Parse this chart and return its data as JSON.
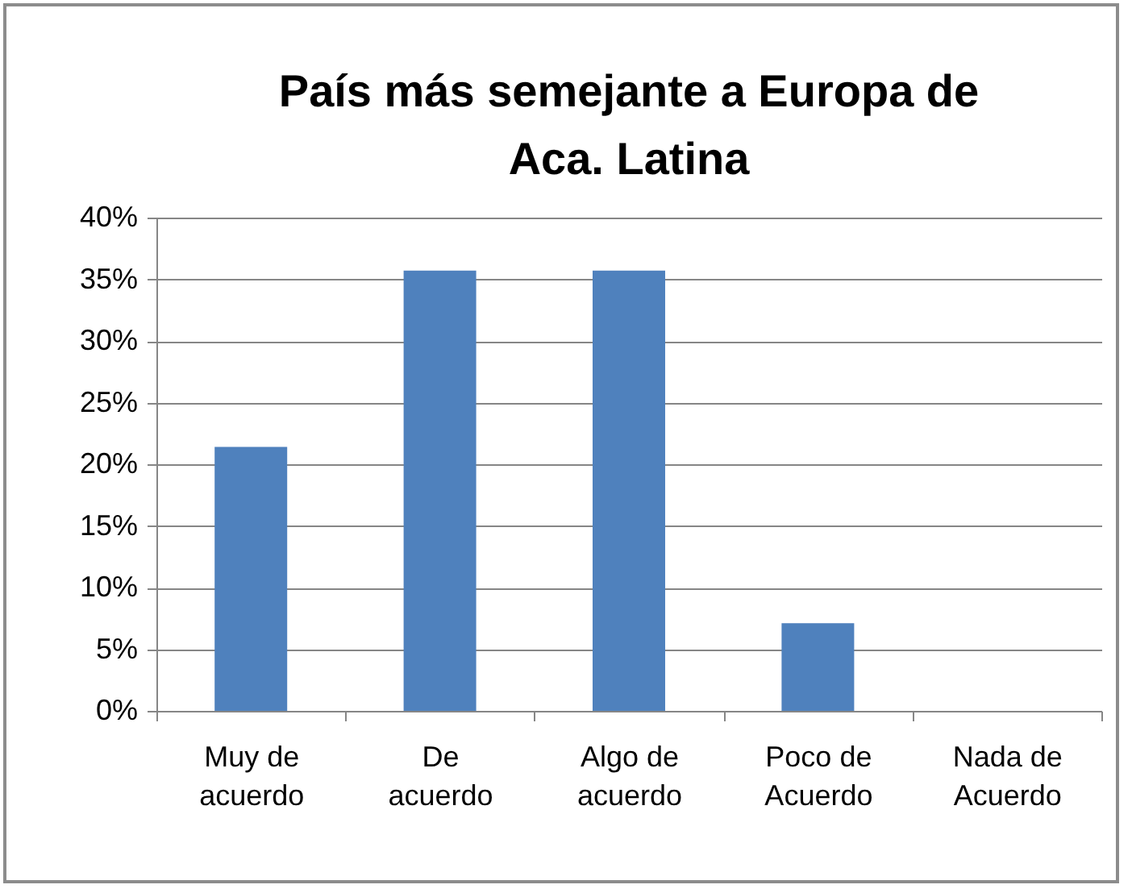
{
  "chart_data": {
    "type": "bar",
    "title": "País más semejante a Europa de Aca. Latina",
    "categories": [
      "Muy de acuerdo",
      "De acuerdo",
      "Algo de acuerdo",
      "Poco de Acuerdo",
      "Nada de Acuerdo"
    ],
    "values": [
      21.4,
      35.7,
      35.7,
      7.1,
      0
    ],
    "color": "#4f81bd",
    "ylim": [
      0,
      40
    ],
    "yticks": [
      {
        "value": 0,
        "label": "0%"
      },
      {
        "value": 5,
        "label": "5%"
      },
      {
        "value": 10,
        "label": "10%"
      },
      {
        "value": 15,
        "label": "15%"
      },
      {
        "value": 20,
        "label": "20%"
      },
      {
        "value": 25,
        "label": "25%"
      },
      {
        "value": 30,
        "label": "30%"
      },
      {
        "value": 35,
        "label": "35%"
      },
      {
        "value": 40,
        "label": "40%"
      }
    ],
    "grid": "y"
  }
}
